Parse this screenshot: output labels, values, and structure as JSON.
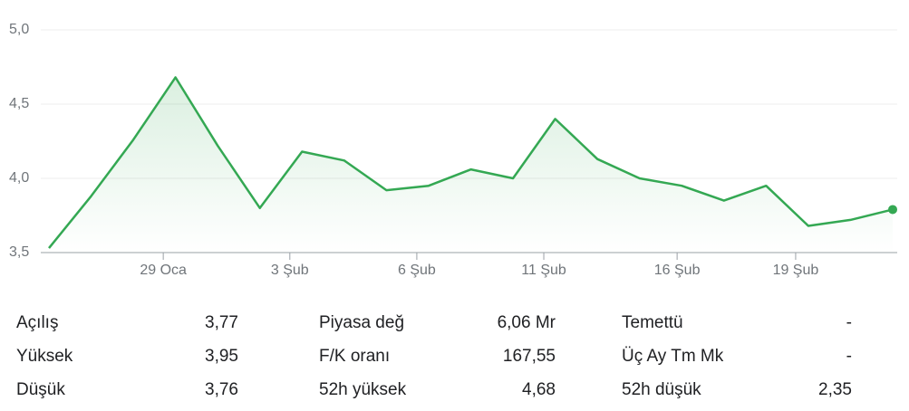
{
  "chart_data": {
    "type": "line",
    "x": [
      0,
      1,
      2,
      3,
      4,
      5,
      6,
      7,
      8,
      9,
      10,
      11,
      12,
      13,
      14,
      15,
      16,
      17,
      18,
      19,
      20
    ],
    "series": [
      {
        "color": "#34a853",
        "values": [
          3.53,
          3.88,
          4.26,
          4.68,
          4.22,
          3.8,
          4.18,
          4.12,
          3.92,
          3.95,
          4.06,
          4.0,
          4.4,
          4.13,
          4.0,
          3.95,
          3.85,
          3.95,
          3.68,
          3.72,
          3.79
        ]
      }
    ],
    "xlim": [
      0,
      20
    ],
    "xticks": [
      {
        "value": 2.71,
        "label": "29 Oca"
      },
      {
        "value": 5.71,
        "label": "3 Şub"
      },
      {
        "value": 8.72,
        "label": "6 Şub"
      },
      {
        "value": 11.73,
        "label": "11 Şub"
      },
      {
        "value": 14.89,
        "label": "16 Şub"
      },
      {
        "value": 17.7,
        "label": "19 Şub"
      }
    ],
    "ylim": [
      3.5,
      5.0
    ],
    "yticks": [
      {
        "value": 3.5,
        "label": "3,5"
      },
      {
        "value": 4.0,
        "label": "4,0"
      },
      {
        "value": 4.5,
        "label": "4,5"
      },
      {
        "value": 5.0,
        "label": "5,0"
      }
    ],
    "grid": true
  },
  "stats": {
    "rows": [
      [
        [
          "Açılış",
          "3,77"
        ],
        [
          "Piyasa değ",
          "6,06 Mr"
        ],
        [
          "Temettü",
          "-"
        ]
      ],
      [
        [
          "Yüksek",
          "3,95"
        ],
        [
          "F/K oranı",
          "167,55"
        ],
        [
          "Üç Ay Tm Mk",
          "-"
        ]
      ],
      [
        [
          "Düşük",
          "3,76"
        ],
        [
          "52h yüksek",
          "4,68"
        ],
        [
          "52h düşük",
          "2,35"
        ]
      ]
    ]
  }
}
